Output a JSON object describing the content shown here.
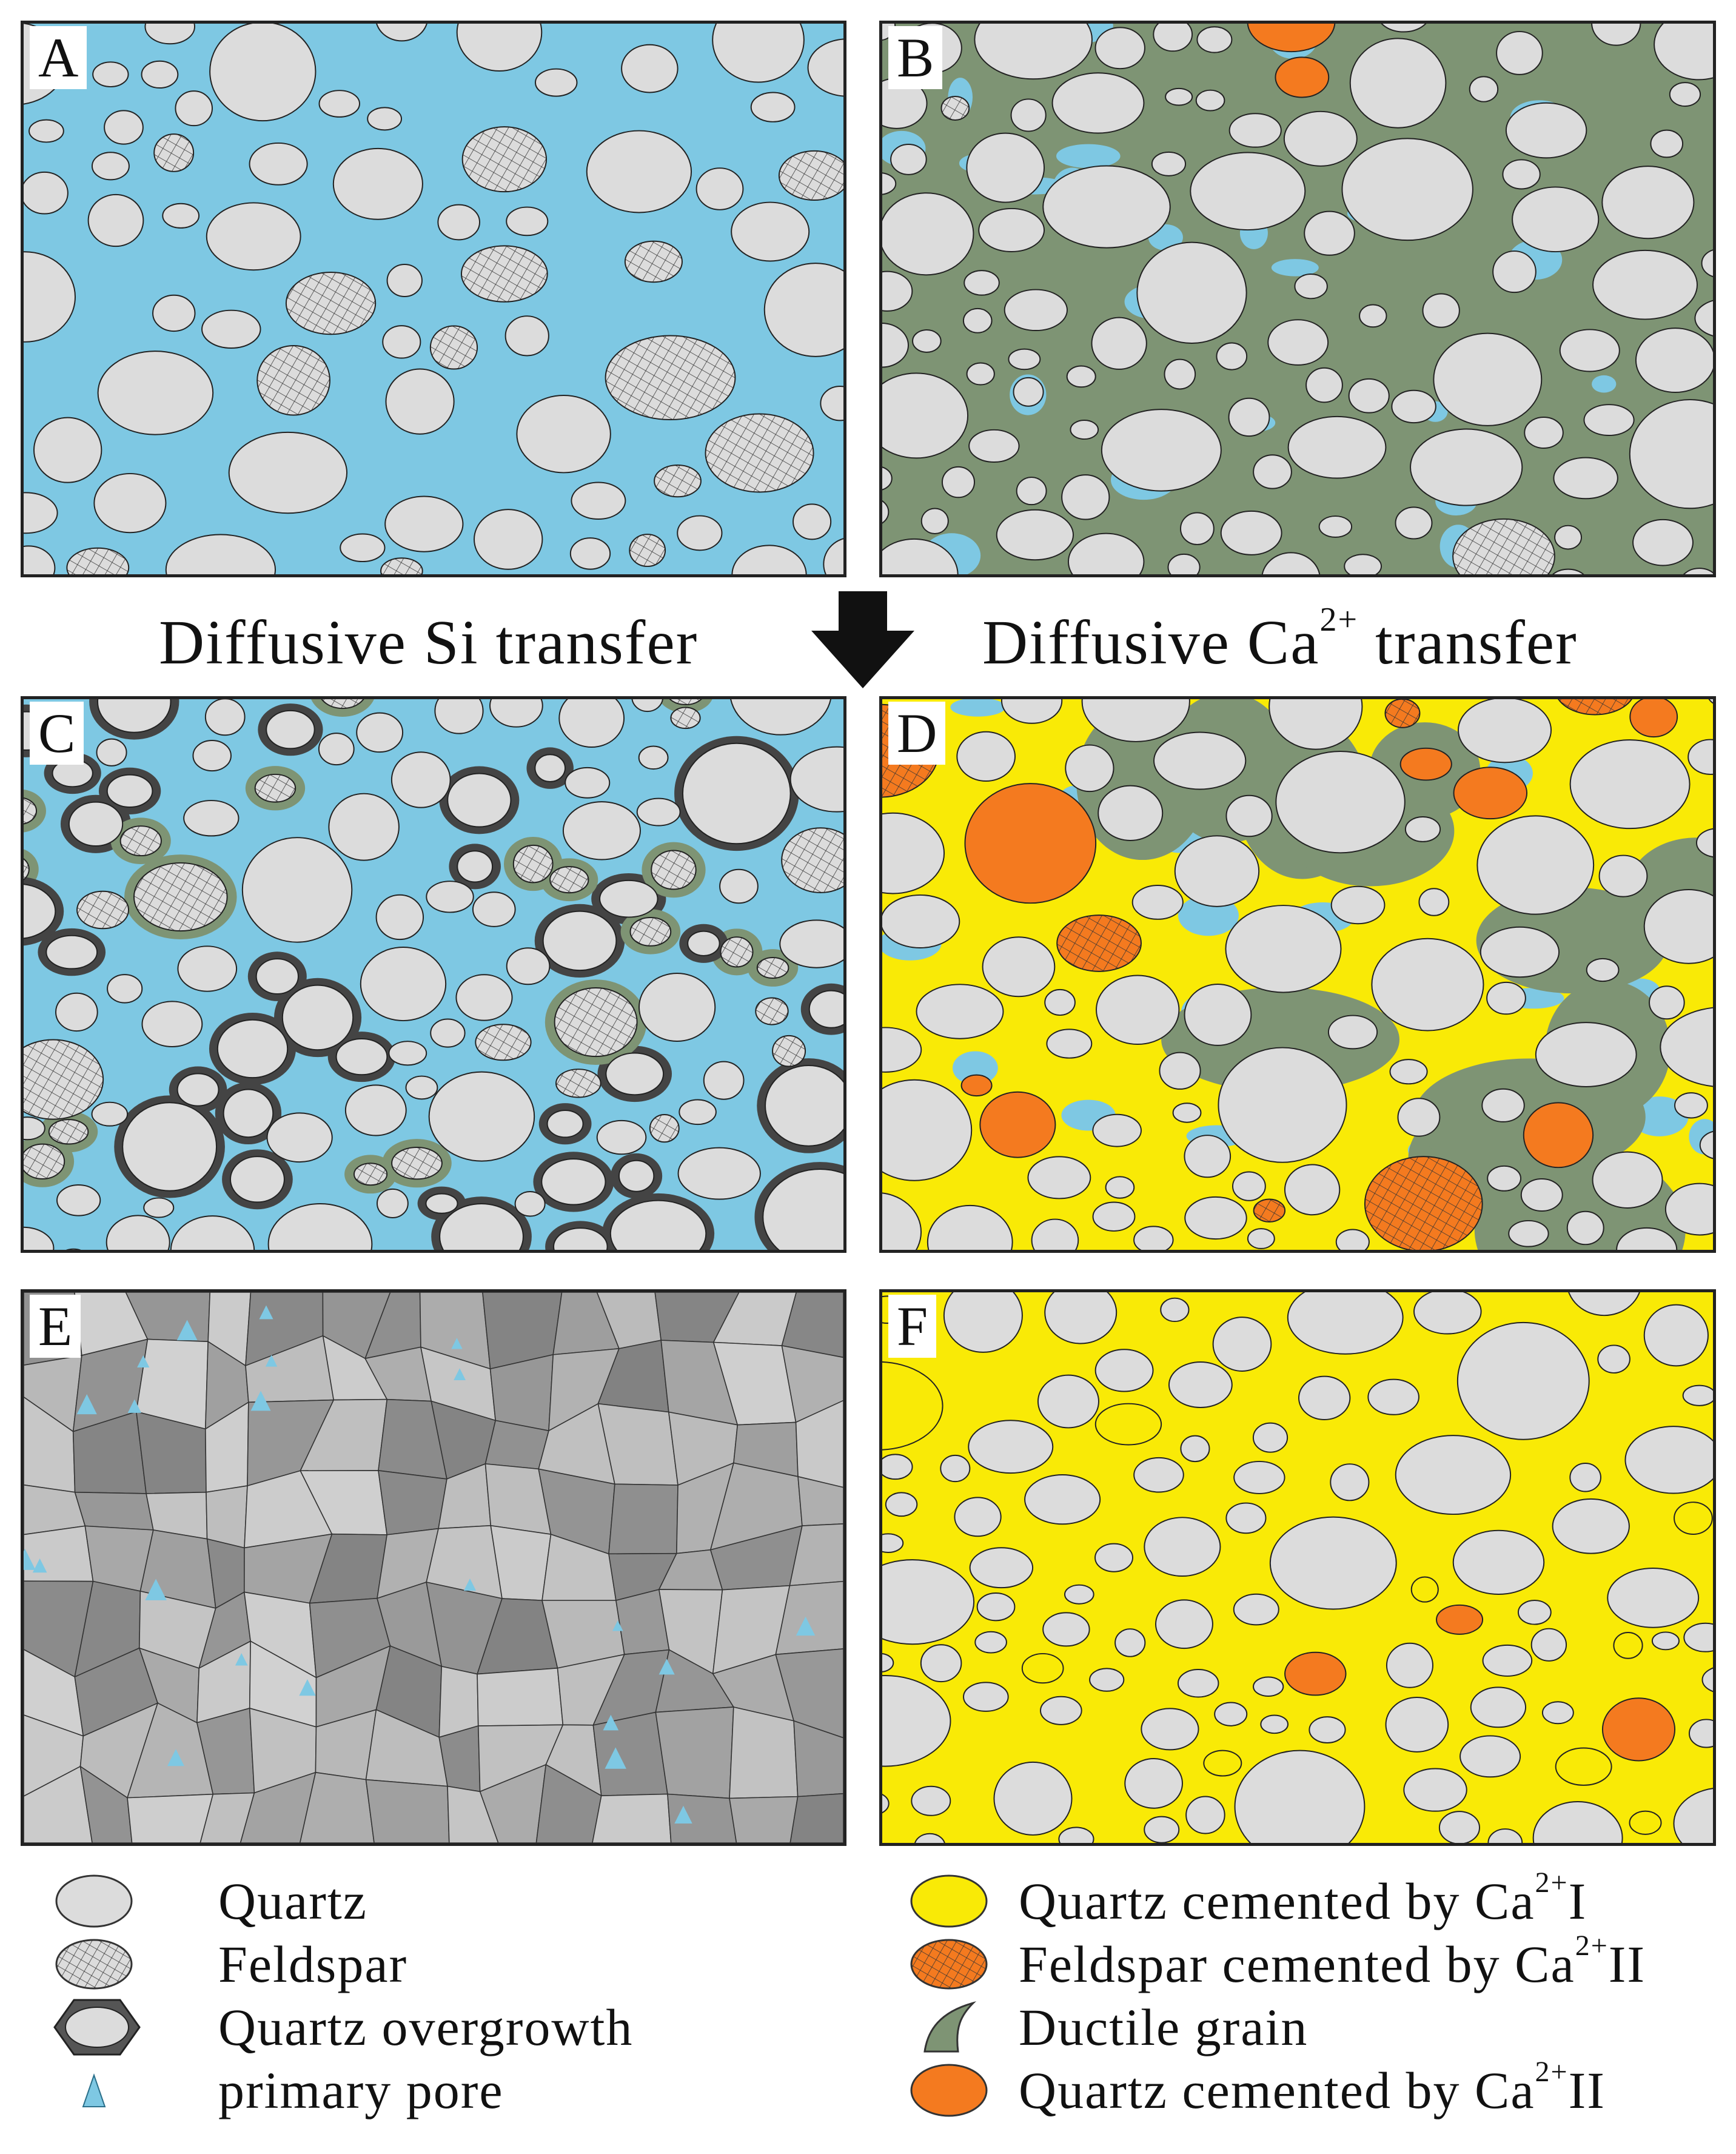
{
  "panels": [
    {
      "id": "A",
      "label": "A",
      "bg": "#7ec8e3",
      "scheme": "loose"
    },
    {
      "id": "B",
      "label": "B",
      "bg": "#7e9474",
      "scheme": "ductile"
    },
    {
      "id": "C",
      "label": "C",
      "bg": "#7ec8e3",
      "scheme": "overgrowth"
    },
    {
      "id": "D",
      "label": "D",
      "bg": "#f9ea06",
      "scheme": "calcite1"
    },
    {
      "id": "E",
      "label": "E",
      "bg": "#8a8a8a",
      "scheme": "compacted"
    },
    {
      "id": "F",
      "label": "F",
      "bg": "#f9ea06",
      "scheme": "calcite2"
    }
  ],
  "captions": {
    "left": "Diffusive Si transfer",
    "right_prefix": "Diffusive Ca",
    "right_sup": "2+",
    "right_suffix": " transfer"
  },
  "legend": {
    "quartz": "Quartz",
    "feldspar": "Feldspar",
    "overgrowth": "Quartz overgrowth",
    "pore": "primary pore",
    "q_cemented_prefix": "Quartz cemented by Ca",
    "q_cemented_sup": "2+",
    "q_cemented_suffix": "I",
    "f_cemented_prefix": "Feldspar cemented by Ca",
    "f_cemented_sup": "2+",
    "f_cemented_suffix": "II",
    "ductile": "Ductile  grain",
    "q2_cemented_prefix": "Quartz cemented by Ca",
    "q2_cemented_sup": "2+",
    "q2_cemented_suffix": "II"
  },
  "colors": {
    "pore": "#7ec8e3",
    "quartz": "#dcdcdc",
    "ductile": "#7e9474",
    "calcite_I": "#f9ea06",
    "calcite_II": "#f47a1f",
    "overgrowth": "#444444",
    "compacted": "#999999"
  }
}
